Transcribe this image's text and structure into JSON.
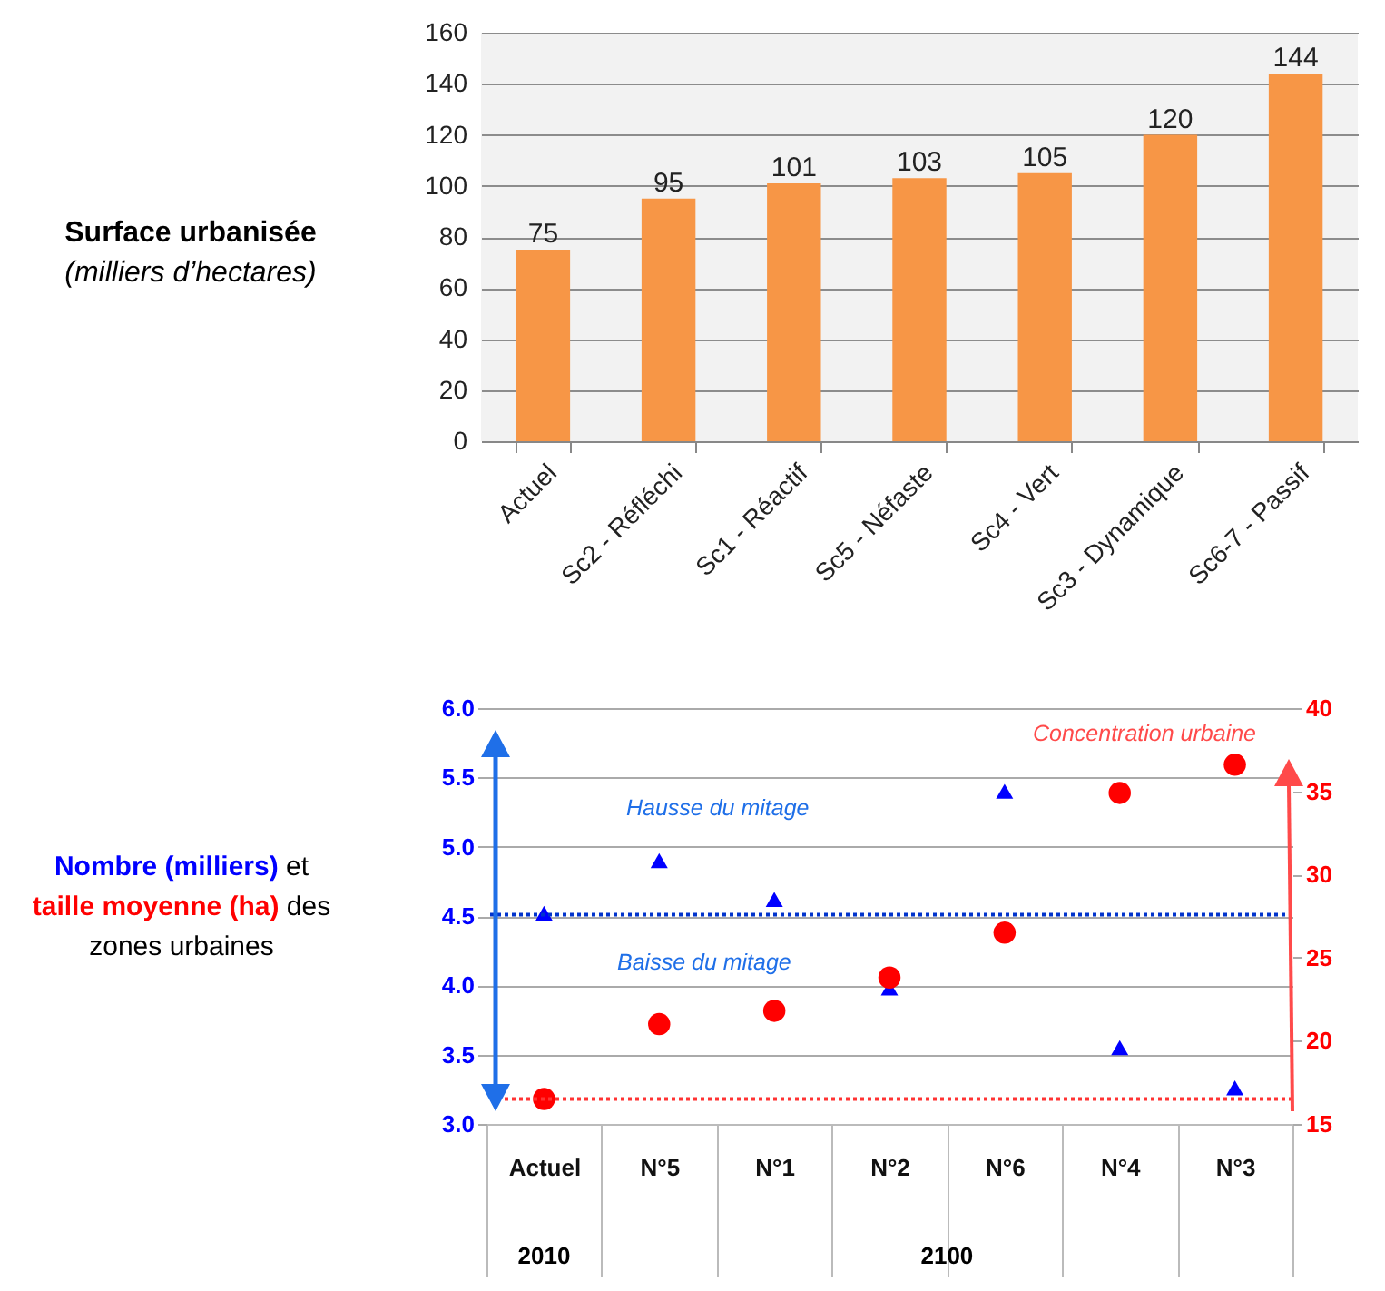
{
  "chart_data": [
    {
      "type": "bar",
      "title": "Surface urbanisée",
      "subtitle": "(milliers d’hectares)",
      "categories": [
        "Actuel",
        "Sc2 - Réfléchi",
        "Sc1 - Réactif",
        "Sc5 - Néfaste",
        "Sc4 - Vert",
        "Sc3 - Dynamique",
        "Sc6-7 - Passif"
      ],
      "values": [
        75,
        95,
        101,
        103,
        105,
        120,
        144
      ],
      "color": "#f79646",
      "ylim": [
        0,
        160
      ],
      "yticks": [
        0,
        20,
        40,
        60,
        80,
        100,
        120,
        140,
        160
      ],
      "grid": "y",
      "data_labels": true
    },
    {
      "type": "scatter",
      "categories": [
        "Actuel",
        "N°5",
        "N°1",
        "N°2",
        "N°6",
        "N°4",
        "N°3"
      ],
      "series": [
        {
          "name": "Nombre (milliers)",
          "color": "#0000ff",
          "marker": "triangle",
          "values": [
            4.52,
            4.9,
            4.62,
            3.98,
            5.4,
            3.55,
            3.26
          ]
        },
        {
          "name": "taille moyenne (ha)",
          "color": "#ff0000",
          "marker": "circle",
          "axis": "y2",
          "values": [
            16.5,
            21.0,
            21.8,
            23.8,
            26.5,
            34.9,
            36.6
          ]
        }
      ],
      "ylim": [
        3,
        6
      ],
      "yticks": [
        {
          "value": 3,
          "label": "3.0"
        },
        3.5,
        {
          "value": 4,
          "label": "4.0"
        },
        4.5,
        {
          "value": 5,
          "label": "5.0"
        },
        5.5,
        {
          "value": 6,
          "label": "6.0"
        }
      ],
      "y2lim": [
        15,
        40
      ],
      "y2ticks": [
        15,
        20,
        25,
        30,
        35,
        40
      ],
      "ref_lines": [
        {
          "axis": "y",
          "value": 4.51,
          "color": "#0033cc",
          "line_style": "dotted"
        },
        {
          "axis": "y2",
          "value": 16.5,
          "color": "#ff3333",
          "line_style": "dotted"
        }
      ],
      "annotations": [
        "et",
        "des zones urbaines",
        "Hausse du mitage",
        "Baisse du mitage",
        "Concentration urbaine",
        "2010",
        "2100"
      ],
      "grid": "y"
    }
  ]
}
